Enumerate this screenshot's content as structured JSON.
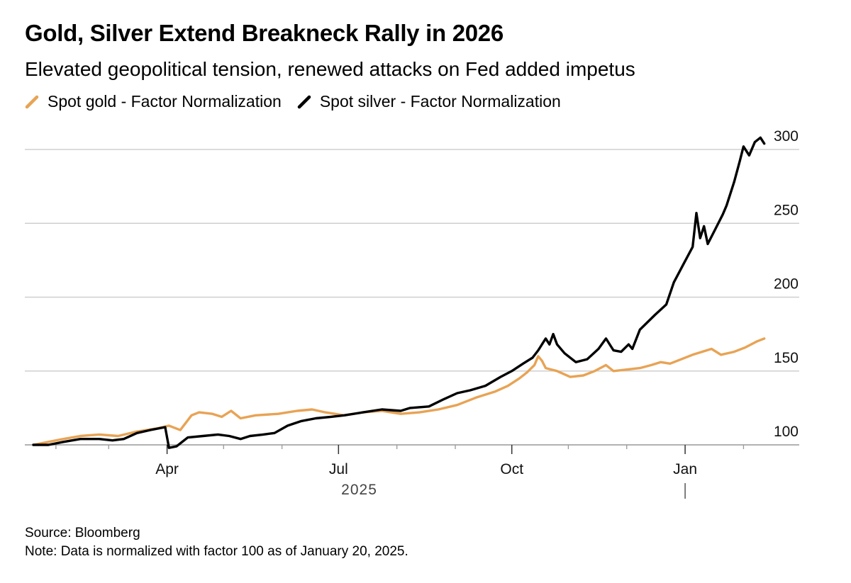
{
  "chart_data": {
    "type": "line",
    "title": "Gold, Silver Extend Breakneck Rally in 2026",
    "subtitle": "Elevated geopolitical tension, renewed attacks on Fed added impetus",
    "xlabel": "2025",
    "ylabel": "",
    "ylim": [
      100,
      300
    ],
    "y_ticks": [
      "100",
      "150",
      "200",
      "250",
      "300"
    ],
    "x_tick_labels": [
      {
        "label": "Apr",
        "day": 71
      },
      {
        "label": "Jul",
        "day": 162
      },
      {
        "label": "Oct",
        "day": 254
      },
      {
        "label": "Jan",
        "day": 346
      }
    ],
    "x_minor_tick_days": [
      12,
      40,
      101,
      132,
      193,
      224,
      284,
      315,
      377
    ],
    "x_year_marker_day": 346,
    "x_range_days": [
      0,
      387
    ],
    "grid": true,
    "legend_position": "top-left",
    "series": [
      {
        "name": "Spot gold - Factor Normalization",
        "color": "#e8a354",
        "points": [
          [
            0,
            100
          ],
          [
            8,
            102
          ],
          [
            16,
            104
          ],
          [
            25,
            106
          ],
          [
            35,
            107
          ],
          [
            45,
            106
          ],
          [
            55,
            109
          ],
          [
            65,
            111
          ],
          [
            72,
            113
          ],
          [
            78,
            110
          ],
          [
            84,
            120
          ],
          [
            88,
            122
          ],
          [
            95,
            121
          ],
          [
            100,
            119
          ],
          [
            105,
            123
          ],
          [
            110,
            118
          ],
          [
            118,
            120
          ],
          [
            130,
            121
          ],
          [
            140,
            123
          ],
          [
            148,
            124
          ],
          [
            155,
            122
          ],
          [
            165,
            120
          ],
          [
            175,
            122
          ],
          [
            185,
            123
          ],
          [
            195,
            121
          ],
          [
            205,
            122
          ],
          [
            215,
            124
          ],
          [
            225,
            127
          ],
          [
            235,
            132
          ],
          [
            245,
            136
          ],
          [
            252,
            140
          ],
          [
            258,
            145
          ],
          [
            262,
            149
          ],
          [
            266,
            154
          ],
          [
            268,
            160
          ],
          [
            270,
            157
          ],
          [
            272,
            152
          ],
          [
            278,
            150
          ],
          [
            285,
            146
          ],
          [
            292,
            147
          ],
          [
            298,
            150
          ],
          [
            304,
            154
          ],
          [
            308,
            150
          ],
          [
            315,
            151
          ],
          [
            322,
            152
          ],
          [
            328,
            154
          ],
          [
            333,
            156
          ],
          [
            338,
            155
          ],
          [
            344,
            158
          ],
          [
            350,
            161
          ],
          [
            355,
            163
          ],
          [
            360,
            165
          ],
          [
            365,
            161
          ],
          [
            372,
            163
          ],
          [
            378,
            166
          ],
          [
            384,
            170
          ],
          [
            388,
            172
          ]
        ]
      },
      {
        "name": "Spot silver - Factor Normalization",
        "color": "#000000",
        "points": [
          [
            0,
            100
          ],
          [
            8,
            100
          ],
          [
            16,
            102
          ],
          [
            25,
            104
          ],
          [
            35,
            104
          ],
          [
            42,
            103
          ],
          [
            48,
            104
          ],
          [
            55,
            108
          ],
          [
            62,
            110
          ],
          [
            70,
            112
          ],
          [
            72,
            98
          ],
          [
            76,
            99
          ],
          [
            82,
            105
          ],
          [
            90,
            106
          ],
          [
            98,
            107
          ],
          [
            104,
            106
          ],
          [
            110,
            104
          ],
          [
            115,
            106
          ],
          [
            122,
            107
          ],
          [
            128,
            108
          ],
          [
            135,
            113
          ],
          [
            142,
            116
          ],
          [
            150,
            118
          ],
          [
            158,
            119
          ],
          [
            165,
            120
          ],
          [
            175,
            122
          ],
          [
            185,
            124
          ],
          [
            195,
            123
          ],
          [
            200,
            125
          ],
          [
            210,
            126
          ],
          [
            218,
            131
          ],
          [
            225,
            135
          ],
          [
            232,
            137
          ],
          [
            240,
            140
          ],
          [
            248,
            146
          ],
          [
            254,
            150
          ],
          [
            260,
            155
          ],
          [
            265,
            159
          ],
          [
            268,
            164
          ],
          [
            272,
            172
          ],
          [
            274,
            168
          ],
          [
            276,
            175
          ],
          [
            278,
            168
          ],
          [
            282,
            162
          ],
          [
            288,
            156
          ],
          [
            294,
            158
          ],
          [
            300,
            165
          ],
          [
            304,
            172
          ],
          [
            308,
            164
          ],
          [
            312,
            163
          ],
          [
            316,
            168
          ],
          [
            318,
            165
          ],
          [
            322,
            178
          ],
          [
            330,
            188
          ],
          [
            336,
            195
          ],
          [
            340,
            210
          ],
          [
            345,
            222
          ],
          [
            350,
            234
          ],
          [
            352,
            257
          ],
          [
            354,
            240
          ],
          [
            356,
            248
          ],
          [
            358,
            236
          ],
          [
            362,
            246
          ],
          [
            366,
            256
          ],
          [
            368,
            262
          ],
          [
            372,
            278
          ],
          [
            375,
            292
          ],
          [
            377,
            302
          ],
          [
            380,
            296
          ],
          [
            383,
            305
          ],
          [
            386,
            308
          ],
          [
            388,
            304
          ]
        ]
      }
    ]
  },
  "legend": {
    "gold_label": "Spot gold - Factor Normalization",
    "silver_label": "Spot silver - Factor Normalization"
  },
  "footer": {
    "source": "Source: Bloomberg",
    "note": "Note: Data is normalized with factor 100 as of January 20, 2025."
  },
  "colors": {
    "gold": "#e8a354",
    "silver": "#000000",
    "grid": "#cfcfcf",
    "axis": "#999999"
  }
}
